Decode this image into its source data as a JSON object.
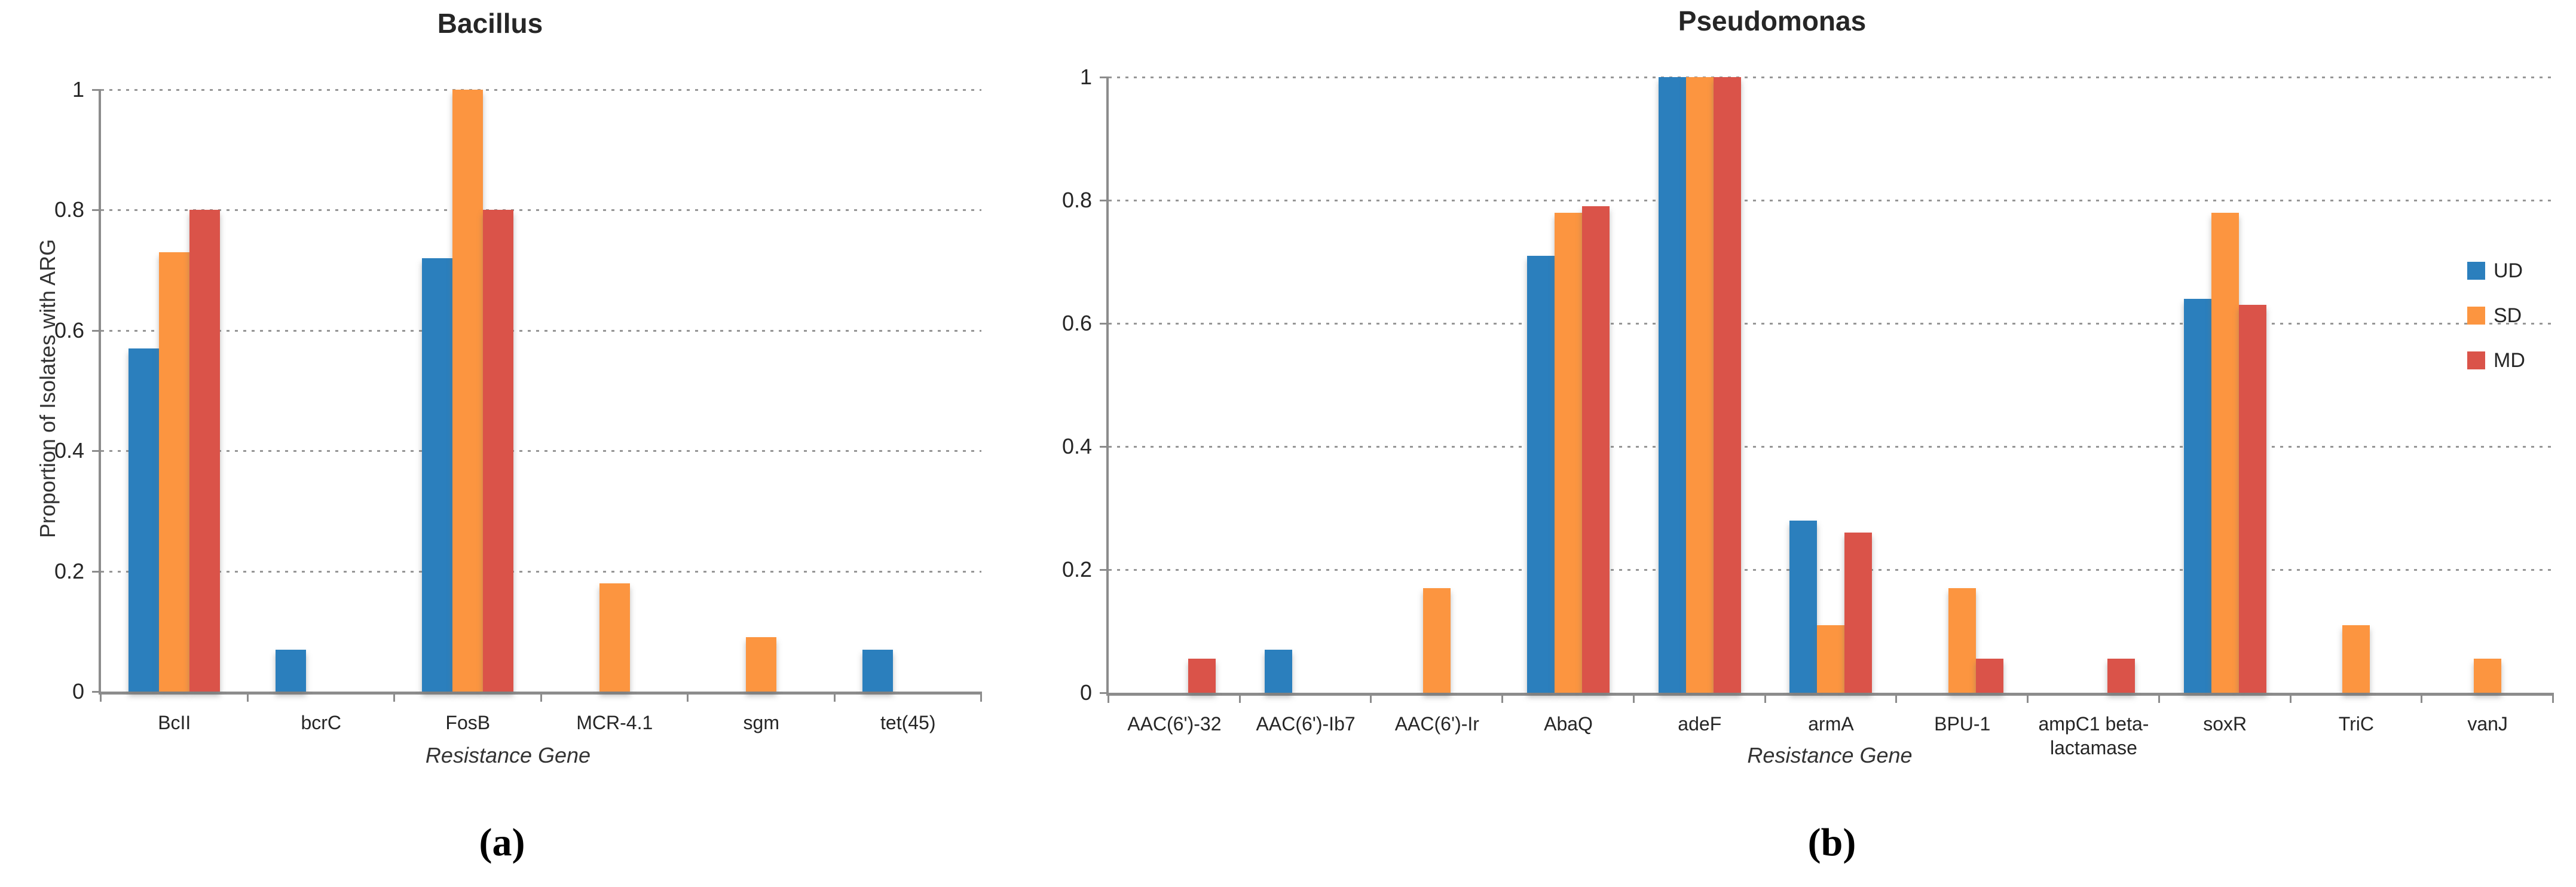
{
  "legend": {
    "position": "right-of-second-chart",
    "items": [
      {
        "label": "UD",
        "color": "#2B7FBD"
      },
      {
        "label": "SD",
        "color": "#FC9540"
      },
      {
        "label": "MD",
        "color": "#DA5349"
      }
    ]
  },
  "chart_data": [
    {
      "type": "bar",
      "title": "Bacillus",
      "caption": "(a)",
      "xlabel": "Resistance Gene",
      "ylabel": "Proportion of Isolates with ARG",
      "ylim": [
        0,
        1
      ],
      "yticks": [
        0,
        0.2,
        0.4,
        0.6,
        0.8,
        1
      ],
      "grid": "horizontal-dotted",
      "legend_shown": false,
      "categories": [
        "BcII",
        "bcrC",
        "FosB",
        "MCR-4.1",
        "sgm",
        "tet(45)"
      ],
      "series": [
        {
          "name": "UD",
          "color": "#2B7FBD",
          "values": [
            0.57,
            0.07,
            0.72,
            0,
            0,
            0.07
          ]
        },
        {
          "name": "SD",
          "color": "#FC9540",
          "values": [
            0.73,
            0,
            1.0,
            0.18,
            0.09,
            0
          ]
        },
        {
          "name": "MD",
          "color": "#DA5349",
          "values": [
            0.8,
            0,
            0.8,
            0,
            0,
            0
          ]
        }
      ]
    },
    {
      "type": "bar",
      "title": "Pseudomonas",
      "caption": "(b)",
      "xlabel": "Resistance Gene",
      "ylabel": "",
      "ylim": [
        0,
        1
      ],
      "yticks": [
        0,
        0.2,
        0.4,
        0.6,
        0.8,
        1
      ],
      "grid": "horizontal-dotted",
      "legend_shown": true,
      "categories": [
        "AAC(6')-32",
        "AAC(6')-Ib7",
        "AAC(6')-Ir",
        "AbaQ",
        "adeF",
        "armA",
        "BPU-1",
        "ampC1 beta-lactamase",
        "soxR",
        "TriC",
        "vanJ"
      ],
      "series": [
        {
          "name": "UD",
          "color": "#2B7FBD",
          "values": [
            0,
            0.07,
            0,
            0.71,
            1.0,
            0.28,
            0,
            0,
            0.64,
            0,
            0
          ]
        },
        {
          "name": "SD",
          "color": "#FC9540",
          "values": [
            0,
            0,
            0.17,
            0.78,
            1.0,
            0.11,
            0.17,
            0,
            0.78,
            0.11,
            0.055
          ]
        },
        {
          "name": "MD",
          "color": "#DA5349",
          "values": [
            0.055,
            0,
            0,
            0.79,
            1.0,
            0.26,
            0.055,
            0.055,
            0.63,
            0,
            0
          ]
        }
      ]
    }
  ]
}
